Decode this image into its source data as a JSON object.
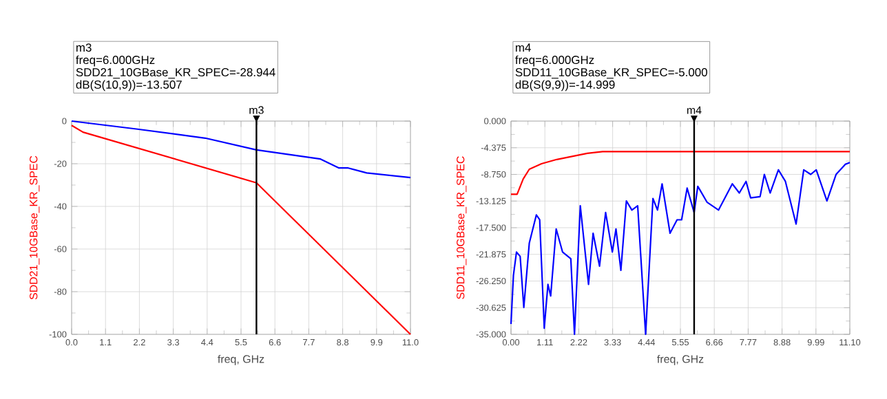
{
  "chart_data": [
    {
      "type": "line",
      "xlabel": "freq, GHz",
      "ylabel": "SDD21_10GBase_KR_SPEC",
      "annotations": [
        "m3",
        "freq=6.000GHz",
        "SDD21_10GBase_KR_SPEC=-28.944",
        "dB(S(10,9))=-13.507"
      ],
      "series": [
        {
          "color": "#ff0000",
          "x": [
            0,
            0.37,
            6,
            11
          ],
          "values": [
            -2,
            -5.2,
            -28.944,
            -100
          ]
        },
        {
          "color": "#0000ff",
          "x": [
            0,
            2.1,
            4.34,
            6,
            8.08,
            8.68,
            8.98,
            9.58,
            11
          ],
          "values": [
            0,
            -3.7,
            -8,
            -13.507,
            -17.8,
            -22,
            -22,
            -24.3,
            -26.5
          ]
        }
      ],
      "xlim": [
        0,
        11
      ],
      "ylim": [
        -100,
        0
      ],
      "xticks": [
        {
          "value": 0,
          "label": "0.0"
        },
        1.1,
        2.2,
        3.3,
        4.4,
        5.5,
        6.6,
        7.7,
        8.8,
        9.9,
        {
          "value": 11,
          "label": "11.0"
        }
      ],
      "yticks": [
        -100,
        -80,
        -60,
        -40,
        -20,
        0
      ],
      "grid": true,
      "line_style": "solid",
      "ref_lines": [
        {
          "axis": "x",
          "value": 6,
          "label": "m3"
        }
      ]
    },
    {
      "type": "line",
      "xlabel": "freq, GHz",
      "ylabel": "SDD11_10GBase_KR_SPEC",
      "annotations": [
        "m4",
        "freq=6.000GHz",
        "SDD11_10GBase_KR_SPEC=-5.000",
        "dB(S(9,9))=-14.999"
      ],
      "series": [
        {
          "color": "#ff0000",
          "x": [
            0,
            0.2,
            0.4,
            0.6,
            1,
            1.5,
            2,
            2.5,
            3,
            11.1
          ],
          "values": [
            -12,
            -12,
            -9.5,
            -7.9,
            -7,
            -6.3,
            -5.8,
            -5.3,
            -5,
            -5
          ]
        },
        {
          "color": "#0000ff",
          "x": [
            0,
            0.08,
            0.18,
            0.3,
            0.42,
            0.6,
            0.83,
            0.94,
            1.09,
            1.21,
            1.3,
            1.48,
            1.69,
            1.96,
            2.08,
            2.27,
            2.54,
            2.69,
            2.9,
            3.1,
            3.32,
            3.44,
            3.6,
            3.78,
            3.96,
            4.15,
            4.41,
            4.65,
            4.8,
            4.95,
            5.21,
            5.44,
            5.59,
            5.77,
            6,
            6.12,
            6.42,
            6.8,
            7.25,
            7.48,
            7.7,
            7.85,
            8.16,
            8.3,
            8.49,
            8.76,
            8.99,
            9.34,
            9.59,
            9.82,
            10,
            10.35,
            10.65,
            10.95,
            11.1
          ],
          "values": [
            -33.3,
            -25.3,
            -21.5,
            -22.2,
            -30.6,
            -20,
            -15.4,
            -16.2,
            -34,
            -26.8,
            -28.7,
            -17.7,
            -21.5,
            -22.6,
            -35,
            -13.9,
            -26.8,
            -18.4,
            -23.8,
            -15,
            -21.5,
            -17.7,
            -24.5,
            -13.1,
            -14.6,
            -13.9,
            -35,
            -12.7,
            -14.6,
            -10.3,
            -18.4,
            -16.2,
            -16.2,
            -11,
            -14.999,
            -10.7,
            -13.3,
            -14.6,
            -10.3,
            -11.8,
            -9.9,
            -12.6,
            -12.4,
            -8.75,
            -11.8,
            -8,
            -9.9,
            -16.9,
            -8,
            -8.75,
            -8,
            -13.1,
            -8.75,
            -7.1,
            -6.8
          ]
        }
      ],
      "xlim": [
        0,
        11.1
      ],
      "ylim": [
        -35,
        0
      ],
      "xticks": [
        {
          "value": 0,
          "label": "0.00"
        },
        1.11,
        2.22,
        3.33,
        4.44,
        5.55,
        6.66,
        7.77,
        8.88,
        9.99,
        {
          "value": 11.1,
          "label": "11.10"
        }
      ],
      "yticks": [
        {
          "value": -35,
          "label": "-35.000"
        },
        -30.625,
        {
          "value": -26.25,
          "label": "-26.250"
        },
        -21.875,
        {
          "value": -17.5,
          "label": "-17.500"
        },
        -13.125,
        {
          "value": -8.75,
          "label": "-8.750"
        },
        -4.375,
        {
          "value": 0,
          "label": "0.000"
        }
      ],
      "grid": true,
      "line_style": "solid",
      "ref_lines": [
        {
          "axis": "x",
          "value": 6,
          "label": "m4"
        }
      ]
    }
  ]
}
